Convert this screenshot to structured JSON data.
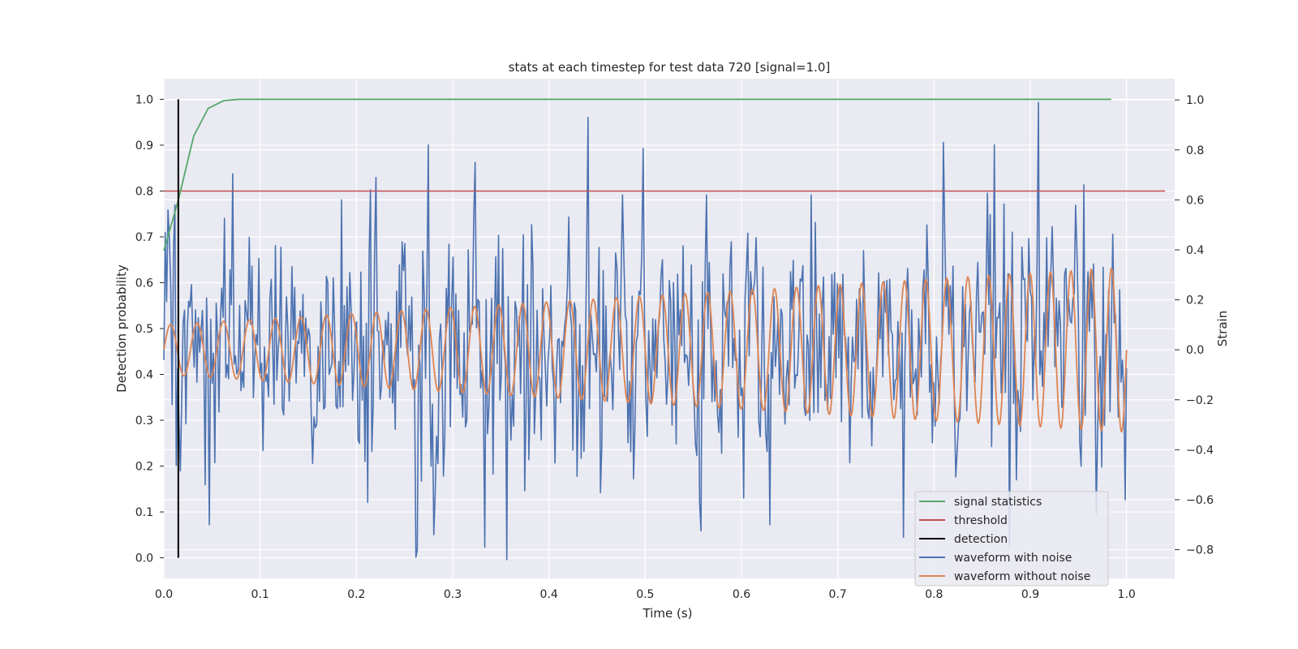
{
  "chart_data": {
    "type": "line",
    "title": "stats at each timestep for test data 720 [signal=1.0]",
    "xlabel": "Time (s)",
    "ylabel": "Detection probability",
    "y2label": "Strain",
    "xlim": [
      0.0,
      1.05
    ],
    "ylim": [
      -0.045,
      1.045
    ],
    "y2lim": [
      -0.915,
      1.085
    ],
    "xticks": [
      "0.0",
      "0.1",
      "0.2",
      "0.3",
      "0.4",
      "0.5",
      "0.6",
      "0.7",
      "0.8",
      "0.9",
      "1.0"
    ],
    "yticks": [
      "0.0",
      "0.1",
      "0.2",
      "0.3",
      "0.4",
      "0.5",
      "0.6",
      "0.7",
      "0.8",
      "0.9",
      "1.0"
    ],
    "y2ticks": [
      "−0.8",
      "−0.6",
      "−0.4",
      "−0.2",
      "0.0",
      "0.2",
      "0.4",
      "0.6",
      "0.8",
      "1.0"
    ],
    "grid": true,
    "legend_position": "lower-right",
    "colors": {
      "background": "#eaeaf2",
      "grid": "#ffffff",
      "signal": "#55a868",
      "threshold": "#c44e52",
      "detection": "#000000",
      "noisy": "#4c72b0",
      "clean": "#dd8452"
    },
    "series": [
      {
        "name": "signal statistics",
        "axis": "left",
        "color": "#55a868",
        "x": [
          0.0,
          0.015,
          0.031,
          0.046,
          0.062,
          0.077,
          0.1,
          0.3,
          0.5,
          0.7,
          0.9,
          0.984
        ],
        "y": [
          0.67,
          0.78,
          0.92,
          0.98,
          0.997,
          1.0,
          1.0,
          1.0,
          1.0,
          1.0,
          1.0,
          1.0
        ]
      },
      {
        "name": "threshold",
        "axis": "left",
        "color": "#c44e52",
        "x": [
          0.0,
          1.04
        ],
        "y": [
          0.8,
          0.8
        ]
      },
      {
        "name": "detection",
        "axis": "left",
        "color": "#000000",
        "x": [
          0.015,
          0.015
        ],
        "y": [
          0.0,
          1.0
        ]
      },
      {
        "name": "waveform with noise",
        "axis": "right",
        "color": "#4c72b0",
        "x_range": [
          0.0,
          1.0
        ],
        "n_points": 700,
        "amplitude_std": 0.22,
        "peaks": [
          [
            0.001,
            0.47
          ],
          [
            0.005,
            0.56
          ],
          [
            0.011,
            0.58
          ],
          [
            0.043,
            -0.54
          ],
          [
            0.047,
            -0.7
          ],
          [
            0.184,
            0.6
          ],
          [
            0.215,
            0.64
          ],
          [
            0.22,
            0.69
          ],
          [
            0.262,
            -0.83
          ],
          [
            0.263,
            -0.8
          ],
          [
            0.275,
            0.82
          ],
          [
            0.281,
            -0.74
          ],
          [
            0.324,
            0.75
          ],
          [
            0.334,
            -0.79
          ],
          [
            0.356,
            -0.84
          ],
          [
            0.44,
            0.93
          ],
          [
            0.476,
            0.62
          ],
          [
            0.556,
            -0.61
          ],
          [
            0.563,
            0.62
          ],
          [
            0.63,
            -0.7
          ],
          [
            0.673,
            0.62
          ],
          [
            0.768,
            -0.75
          ],
          [
            0.81,
            0.83
          ],
          [
            0.862,
            0.82
          ],
          [
            0.878,
            -0.79
          ],
          [
            0.908,
            0.99
          ],
          [
            0.956,
            0.66
          ],
          [
            0.999,
            -0.6
          ]
        ]
      },
      {
        "name": "waveform without noise",
        "axis": "right",
        "color": "#dd8452",
        "x_range": [
          0.0,
          1.0
        ],
        "amplitude_start": 0.1,
        "amplitude_end": 0.33,
        "frequency_start_hz": 36,
        "frequency_end_hz": 48
      }
    ]
  }
}
